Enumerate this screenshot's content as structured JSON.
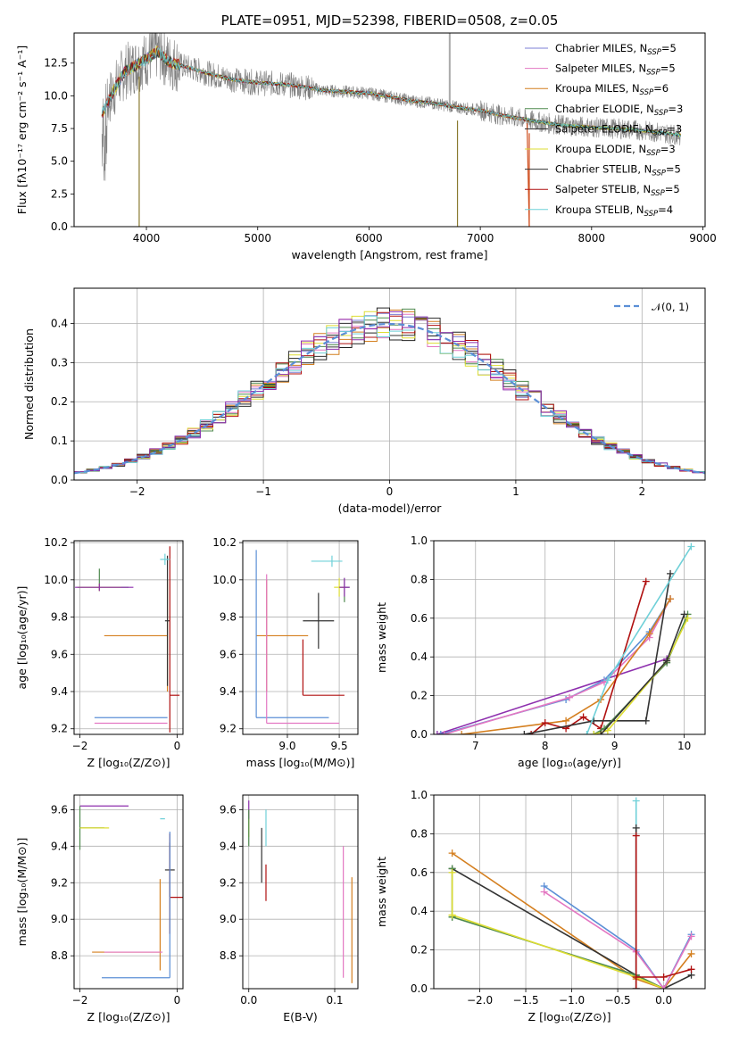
{
  "chart_data": [
    {
      "id": "spectrum",
      "type": "line",
      "title": "PLATE=0951, MJD=52398, FIBERID=0508, z=0.05",
      "xlabel": "wavelength [Angstrom, rest frame]",
      "ylabel": "Flux [fλ10⁻¹⁷ erg cm⁻² s⁻¹ A⁻¹]",
      "xlim": [
        3350,
        9020
      ],
      "ylim": [
        0,
        14.8
      ],
      "xticks": [
        4000,
        5000,
        6000,
        7000,
        8000,
        9000
      ],
      "yticks": [
        0.0,
        2.5,
        5.0,
        7.5,
        10.0,
        12.5
      ],
      "grid": false,
      "legend_position": "top-right",
      "legend": [
        {
          "label": "Chabrier MILES, N",
          "sub": "SSP",
          "suffix": "=5",
          "color": "#7b7fd4"
        },
        {
          "label": "Salpeter MILES, N",
          "sub": "SSP",
          "suffix": "=5",
          "color": "#e377c2"
        },
        {
          "label": "Kroupa MILES, N",
          "sub": "SSP",
          "suffix": "=6",
          "color": "#d47f1f"
        },
        {
          "label": "Chabrier ELODIE, N",
          "sub": "SSP",
          "suffix": "=3",
          "color": "#4f8a4f"
        },
        {
          "label": "Salpeter ELODIE, N",
          "sub": "SSP",
          "suffix": "=3",
          "color": "#222222"
        },
        {
          "label": "Kroupa ELODIE, N",
          "sub": "SSP",
          "suffix": "=3",
          "color": "#dddd33"
        },
        {
          "label": "Chabrier STELIB, N",
          "sub": "SSP",
          "suffix": "=5",
          "color": "#333333"
        },
        {
          "label": "Salpeter STELIB, N",
          "sub": "SSP",
          "suffix": "=5",
          "color": "#b01010"
        },
        {
          "label": "Kroupa STELIB, N",
          "sub": "SSP",
          "suffix": "=4",
          "color": "#6fd0d8"
        }
      ],
      "data_color": "#808080",
      "model_envelope": {
        "x": [
          3600,
          3700,
          3800,
          3900,
          4000,
          4100,
          4200,
          4400,
          4600,
          4800,
          5000,
          5200,
          5400,
          5600,
          5800,
          6000,
          6200,
          6400,
          6600,
          6800,
          7000,
          7200,
          7400,
          7600,
          7800,
          8000,
          8200,
          8400,
          8600,
          8800
        ],
        "y": [
          8.6,
          10.3,
          11.8,
          12.3,
          12.8,
          13.4,
          12.6,
          12.1,
          11.6,
          11.2,
          11.0,
          10.9,
          10.7,
          10.4,
          10.3,
          10.2,
          9.9,
          9.6,
          9.4,
          9.1,
          8.9,
          8.5,
          8.2,
          7.9,
          7.7,
          7.6,
          7.5,
          7.4,
          7.2,
          7.0
        ]
      }
    },
    {
      "id": "residuals",
      "type": "histogram",
      "xlabel": "(data-model)/error",
      "ylabel": "Normed distribution",
      "xlim": [
        -2.5,
        2.5
      ],
      "ylim": [
        0,
        0.49
      ],
      "xticks": [
        -2,
        -1,
        0,
        1,
        2
      ],
      "yticks": [
        0.0,
        0.1,
        0.2,
        0.3,
        0.4
      ],
      "grid": true,
      "legend_position": "top-right",
      "legend": [
        {
          "label": "𝒩(0, 1)",
          "color": "#5b8fd6",
          "dash": true
        }
      ],
      "bin_edges": [
        -2.5,
        2.5
      ],
      "n_bins": 50,
      "gaussian": {
        "mu": 0,
        "sigma": 1
      }
    },
    {
      "id": "age-vs-Z",
      "type": "errorbar",
      "xlabel": "Z [log₁₀(Z/Z⊙)]",
      "ylabel": "age  [log₁₀(age/yr)]",
      "xlim": [
        -2.12,
        0.12
      ],
      "ylim": [
        9.17,
        10.21
      ],
      "xticks": [
        -2,
        0
      ],
      "yticks": [
        9.2,
        9.4,
        9.6,
        9.8,
        10.0,
        10.2
      ],
      "grid": true,
      "points": [
        {
          "x": -1.6,
          "y": 9.96,
          "xe": [
            0.45,
            0.6
          ],
          "ye": [
            0.02,
            0.1
          ],
          "color": "#4f8a4f"
        },
        {
          "x": -1.6,
          "y": 9.96,
          "xe": [
            0.45,
            0.45
          ],
          "ye": [
            0.02,
            0.02
          ],
          "color": "#dddd33"
        },
        {
          "x": -1.6,
          "y": 9.96,
          "xe": [
            0.5,
            0.7
          ],
          "ye": [
            0.02,
            0.02
          ],
          "color": "#8e2fae"
        },
        {
          "x": -0.2,
          "y": 9.7,
          "xe": [
            1.3,
            0.0
          ],
          "ye": [
            0.3,
            0.3
          ],
          "color": "#d47f1f"
        },
        {
          "x": -0.2,
          "y": 9.78,
          "xe": [
            0.05,
            0.05
          ],
          "ye": [
            0.35,
            0.35
          ],
          "color": "#333333"
        },
        {
          "x": -0.15,
          "y": 9.38,
          "xe": [
            0.0,
            0.2
          ],
          "ye": [
            0.2,
            0.8
          ],
          "color": "#b01010"
        },
        {
          "x": -0.25,
          "y": 10.11,
          "xe": [
            0.1,
            0.1
          ],
          "ye": [
            0.03,
            0.03
          ],
          "color": "#6fd0d8"
        },
        {
          "x": -0.2,
          "y": 9.26,
          "xe": [
            1.5,
            0.0
          ],
          "ye": [
            0.0,
            0.0
          ],
          "color": "#5b8fd6"
        },
        {
          "x": -0.2,
          "y": 9.23,
          "xe": [
            1.5,
            0.0
          ],
          "ye": [
            0.0,
            0.0
          ],
          "color": "#e377c2"
        }
      ]
    },
    {
      "id": "age-vs-mass",
      "type": "errorbar",
      "xlabel": "mass [log₁₀(M/M⊙)]",
      "ylabel": "",
      "xlim": [
        8.57,
        9.68
      ],
      "ylim": [
        9.17,
        10.21
      ],
      "xticks": [
        9.0,
        9.5
      ],
      "yticks": [
        9.2,
        9.4,
        9.6,
        9.8,
        10.0,
        10.2
      ],
      "grid": true,
      "points": [
        {
          "x": 9.55,
          "y": 9.96,
          "xe": [
            0.05,
            0.05
          ],
          "ye": [
            0.08,
            0.05
          ],
          "color": "#4f8a4f"
        },
        {
          "x": 9.5,
          "y": 9.96,
          "xe": [
            0.05,
            0.05
          ],
          "ye": [
            0.05,
            0.05
          ],
          "color": "#dddd33"
        },
        {
          "x": 9.55,
          "y": 9.96,
          "xe": [
            0.05,
            0.05
          ],
          "ye": [
            0.05,
            0.05
          ],
          "color": "#8e2fae"
        },
        {
          "x": 9.43,
          "y": 10.1,
          "xe": [
            0.2,
            0.1
          ],
          "ye": [
            0.03,
            0.03
          ],
          "color": "#6fd0d8"
        },
        {
          "x": 9.3,
          "y": 9.78,
          "xe": [
            0.15,
            0.15
          ],
          "ye": [
            0.15,
            0.15
          ],
          "color": "#333333"
        },
        {
          "x": 8.8,
          "y": 9.7,
          "xe": [
            0.1,
            0.4
          ],
          "ye": [
            0.3,
            0.3
          ],
          "color": "#d47f1f"
        },
        {
          "x": 8.7,
          "y": 9.26,
          "xe": [
            0.0,
            0.7
          ],
          "ye": [
            0.0,
            0.9
          ],
          "color": "#5b8fd6"
        },
        {
          "x": 8.8,
          "y": 9.23,
          "xe": [
            0.0,
            0.7
          ],
          "ye": [
            0.0,
            0.8
          ],
          "color": "#e377c2"
        },
        {
          "x": 9.15,
          "y": 9.38,
          "xe": [
            0.0,
            0.4
          ],
          "ye": [
            0.0,
            0.3
          ],
          "color": "#b01010"
        }
      ]
    },
    {
      "id": "massweight-vs-age",
      "type": "line",
      "xlabel": "age  [log₁₀(age/yr)]",
      "ylabel": "mass weight",
      "xlim": [
        6.4,
        10.3
      ],
      "ylim": [
        0,
        1.0
      ],
      "xticks": [
        7,
        8,
        9,
        10
      ],
      "yticks": [
        0.0,
        0.2,
        0.4,
        0.6,
        0.8,
        1.0
      ],
      "grid": true,
      "series": [
        {
          "color": "#8e2fae",
          "x": [
            6.45,
            9.75
          ],
          "y": [
            0.0,
            0.39
          ]
        },
        {
          "color": "#5b8fd6",
          "x": [
            6.5,
            8.3,
            8.85,
            9.5,
            9.8
          ],
          "y": [
            0.0,
            0.18,
            0.28,
            0.53,
            0.7
          ]
        },
        {
          "color": "#e377c2",
          "x": [
            6.55,
            8.35,
            8.85,
            9.5,
            9.8
          ],
          "y": [
            0.0,
            0.19,
            0.27,
            0.5,
            0.7
          ]
        },
        {
          "color": "#d47f1f",
          "x": [
            6.8,
            8.3,
            8.8,
            9.5,
            9.8
          ],
          "y": [
            0.0,
            0.07,
            0.18,
            0.52,
            0.7
          ]
        },
        {
          "color": "#b01010",
          "x": [
            7.8,
            8.0,
            8.3,
            8.55,
            8.8,
            9.45
          ],
          "y": [
            0.0,
            0.06,
            0.03,
            0.09,
            0.03,
            0.79
          ]
        },
        {
          "color": "#333333",
          "x": [
            7.7,
            8.7,
            9.45,
            9.8
          ],
          "y": [
            0.0,
            0.07,
            0.07,
            0.83
          ]
        },
        {
          "color": "#6fd0d8",
          "x": [
            8.6,
            8.9,
            10.1
          ],
          "y": [
            0.0,
            0.28,
            0.97
          ]
        },
        {
          "color": "#4f8a4f",
          "x": [
            8.7,
            8.85,
            9.75,
            10.05
          ],
          "y": [
            0.0,
            0.03,
            0.37,
            0.62
          ]
        },
        {
          "color": "#dddd33",
          "x": [
            8.7,
            8.9,
            9.75,
            10.05
          ],
          "y": [
            0.0,
            0.02,
            0.38,
            0.6
          ]
        },
        {
          "color": "#333333",
          "x": [
            8.8,
            9.75,
            10.0
          ],
          "y": [
            0.0,
            0.38,
            0.62
          ]
        }
      ]
    },
    {
      "id": "mass-vs-Z",
      "type": "errorbar",
      "xlabel": "Z [log₁₀(Z/Z⊙)]",
      "ylabel": "mass [log₁₀(M/M⊙)]",
      "xlim": [
        -2.12,
        0.12
      ],
      "ylim": [
        8.62,
        9.68
      ],
      "xticks": [
        -2,
        0
      ],
      "yticks": [
        8.8,
        9.0,
        9.2,
        9.4,
        9.6
      ],
      "grid": true,
      "points": [
        {
          "x": -2.0,
          "y": 9.62,
          "xe": [
            0.0,
            1.0
          ],
          "ye": [
            0.0,
            0.0
          ],
          "color": "#8e2fae"
        },
        {
          "x": -2.0,
          "y": 9.5,
          "xe": [
            0.0,
            0.5
          ],
          "ye": [
            0.12,
            0.12
          ],
          "color": "#4f8a4f"
        },
        {
          "x": -2.0,
          "y": 9.5,
          "xe": [
            0.0,
            0.6
          ],
          "ye": [
            0.0,
            0.0
          ],
          "color": "#dddd33"
        },
        {
          "x": -0.3,
          "y": 9.55,
          "xe": [
            0.05,
            0.05
          ],
          "ye": [
            0.0,
            0.0
          ],
          "color": "#6fd0d8"
        },
        {
          "x": -0.15,
          "y": 9.27,
          "xe": [
            0.1,
            0.1
          ],
          "ye": [
            0.15,
            0.15
          ],
          "color": "#333333"
        },
        {
          "x": -0.15,
          "y": 9.12,
          "xe": [
            0.0,
            0.3
          ],
          "ye": [
            0.2,
            0.35
          ],
          "color": "#b01010"
        },
        {
          "x": -0.35,
          "y": 8.82,
          "xe": [
            1.4,
            0.0
          ],
          "ye": [
            0.1,
            0.4
          ],
          "color": "#d47f1f"
        },
        {
          "x": -0.15,
          "y": 8.68,
          "xe": [
            1.4,
            0.0
          ],
          "ye": [
            0.0,
            0.8
          ],
          "color": "#5b8fd6"
        },
        {
          "x": -0.3,
          "y": 8.82,
          "xe": [
            1.2,
            0.0
          ],
          "ye": [
            0.0,
            0.0
          ],
          "color": "#e377c2"
        }
      ]
    },
    {
      "id": "mass-vs-ebv",
      "type": "errorbar",
      "xlabel": "E(B-V)",
      "ylabel": "",
      "xlim": [
        -0.007,
        0.127
      ],
      "ylim": [
        8.62,
        9.68
      ],
      "xticks": [
        0.0,
        0.1
      ],
      "yticks": [
        8.8,
        9.0,
        9.2,
        9.4,
        9.6
      ],
      "grid": true,
      "points": [
        {
          "x": 0.0,
          "y": 9.55,
          "xe": [
            0,
            0
          ],
          "ye": [
            0.1,
            0.05
          ],
          "color": "#dddd33"
        },
        {
          "x": 0.0,
          "y": 9.6,
          "xe": [
            0,
            0
          ],
          "ye": [
            0.05,
            0.05
          ],
          "color": "#8e2fae"
        },
        {
          "x": 0.0,
          "y": 9.5,
          "xe": [
            0,
            0
          ],
          "ye": [
            0.1,
            0.1
          ],
          "color": "#4f8a4f"
        },
        {
          "x": 0.02,
          "y": 9.45,
          "xe": [
            0,
            0
          ],
          "ye": [
            0.05,
            0.15
          ],
          "color": "#6fd0d8"
        },
        {
          "x": 0.015,
          "y": 9.35,
          "xe": [
            0,
            0
          ],
          "ye": [
            0.15,
            0.15
          ],
          "color": "#333333"
        },
        {
          "x": 0.02,
          "y": 9.2,
          "xe": [
            0,
            0
          ],
          "ye": [
            0.1,
            0.1
          ],
          "color": "#b01010"
        },
        {
          "x": 0.11,
          "y": 9.05,
          "xe": [
            0,
            0
          ],
          "ye": [
            0.37,
            0.35
          ],
          "color": "#e377c2"
        },
        {
          "x": 0.12,
          "y": 8.95,
          "xe": [
            0,
            0
          ],
          "ye": [
            0.3,
            0.28
          ],
          "color": "#d47f1f"
        }
      ]
    },
    {
      "id": "massweight-vs-Z",
      "type": "line",
      "xlabel": "Z [log₁₀(Z/Z⊙)]",
      "ylabel": "mass weight",
      "xlim": [
        -2.5,
        0.45
      ],
      "ylim": [
        0,
        1.0
      ],
      "xticks": [
        -2.0,
        -1.5,
        -1.0,
        -0.5,
        0.0
      ],
      "yticks": [
        0.0,
        0.2,
        0.4,
        0.6,
        0.8,
        1.0
      ],
      "grid": true,
      "series": [
        {
          "color": "#d47f1f",
          "x": [
            -2.3,
            -0.3,
            0.0,
            0.3
          ],
          "y": [
            0.7,
            0.05,
            0.0,
            0.18
          ]
        },
        {
          "color": "#333333",
          "x": [
            -2.3,
            -0.3,
            0.0,
            0.3
          ],
          "y": [
            0.62,
            0.07,
            0.0,
            0.07
          ]
        },
        {
          "color": "#4f8a4f",
          "x": [
            -2.3,
            -0.3,
            0.0
          ],
          "y": [
            0.37,
            0.07,
            0.0
          ]
        },
        {
          "color": "#dddd33",
          "x": [
            -2.3,
            -0.3,
            0.0
          ],
          "y": [
            0.38,
            0.06,
            0.0
          ]
        },
        {
          "color": "#4f8a4f",
          "x": [
            -2.3,
            -2.3
          ],
          "y": [
            0.62,
            0.37
          ]
        },
        {
          "color": "#dddd33",
          "x": [
            -2.3,
            -2.3
          ],
          "y": [
            0.6,
            0.38
          ]
        },
        {
          "color": "#5b8fd6",
          "x": [
            -1.3,
            -0.3,
            0.0,
            0.3
          ],
          "y": [
            0.53,
            0.2,
            0.0,
            0.28
          ]
        },
        {
          "color": "#e377c2",
          "x": [
            -1.3,
            -0.3,
            0.0,
            0.3
          ],
          "y": [
            0.5,
            0.19,
            0.0,
            0.27
          ]
        },
        {
          "color": "#6fd0d8",
          "x": [
            -0.3,
            -0.3
          ],
          "y": [
            0.97,
            0.0
          ]
        },
        {
          "color": "#333333",
          "x": [
            -0.3,
            -0.3
          ],
          "y": [
            0.83,
            0.0
          ]
        },
        {
          "color": "#b01010",
          "x": [
            -0.3,
            -0.3
          ],
          "y": [
            0.79,
            0.0
          ]
        },
        {
          "color": "#b01010",
          "x": [
            -0.3,
            0.0,
            0.3
          ],
          "y": [
            0.06,
            0.06,
            0.1
          ]
        }
      ]
    }
  ]
}
